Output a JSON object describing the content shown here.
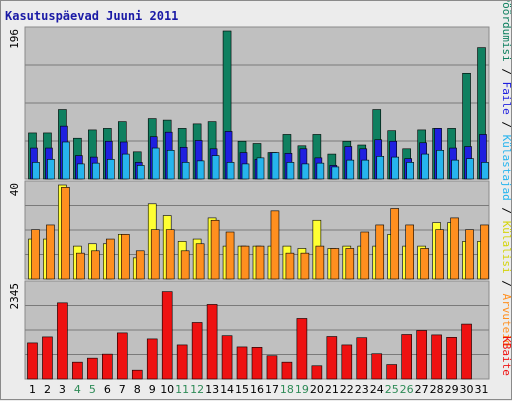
{
  "chart_data": {
    "title": "Kasutuspäevad Juuni 2011",
    "type": "bar",
    "days": [
      "1",
      "2",
      "3",
      "4",
      "5",
      "6",
      "7",
      "8",
      "9",
      "10",
      "11",
      "12",
      "13",
      "14",
      "15",
      "16",
      "17",
      "18",
      "19",
      "20",
      "21",
      "22",
      "23",
      "24",
      "25",
      "26",
      "27",
      "28",
      "29",
      "30",
      "31"
    ],
    "weekend_days": [
      "4",
      "5",
      "11",
      "12",
      "18",
      "19",
      "25",
      "26"
    ],
    "top_panel": {
      "max_label": "196",
      "ymax": 196,
      "series": [
        {
          "name": "Pöördumisi",
          "color": "#0f8060",
          "values": [
            61,
            61,
            92,
            54,
            65,
            67,
            76,
            36,
            80,
            78,
            67,
            73,
            76,
            196,
            50,
            47,
            35,
            59,
            44,
            59,
            33,
            50,
            45,
            92,
            64,
            40,
            65,
            67,
            67,
            140,
            174
          ]
        },
        {
          "name": "Faile",
          "color": "#1f1fe0",
          "values": [
            41,
            41,
            70,
            31,
            29,
            50,
            49,
            22,
            56,
            62,
            42,
            51,
            40,
            63,
            35,
            26,
            35,
            34,
            40,
            28,
            18,
            43,
            40,
            52,
            50,
            27,
            48,
            67,
            41,
            43,
            59
          ]
        },
        {
          "name": "Külastajad",
          "color": "#26b4ee",
          "values": [
            22,
            26,
            49,
            20,
            21,
            26,
            33,
            18,
            41,
            38,
            22,
            24,
            31,
            22,
            20,
            28,
            35,
            22,
            20,
            21,
            16,
            25,
            25,
            30,
            29,
            22,
            33,
            38,
            25,
            27,
            22
          ]
        }
      ]
    },
    "middle_panel": {
      "max_label": "40",
      "ymax": 40,
      "series": [
        {
          "name": "Külalisi",
          "color": "#ffff33",
          "values": [
            17,
            17,
            40,
            14,
            15,
            15,
            19,
            9,
            32,
            27,
            16,
            17,
            26,
            14,
            14,
            14,
            14,
            14,
            13,
            25,
            13,
            14,
            14,
            14,
            19,
            14,
            14,
            24,
            24,
            16,
            16
          ]
        },
        {
          "name": "Arvuteid",
          "color": "#ff8f1f",
          "values": [
            21,
            23,
            39,
            11,
            12,
            17,
            19,
            12,
            21,
            21,
            12,
            15,
            25,
            20,
            14,
            14,
            29,
            11,
            11,
            14,
            13,
            13,
            20,
            23,
            30,
            23,
            13,
            21,
            26,
            21,
            23
          ]
        }
      ]
    },
    "bottom_panel": {
      "max_label": "2345",
      "ymax": 2345,
      "series": [
        {
          "name": "KBaite",
          "color": "#ee1111",
          "values": [
            900,
            1050,
            1900,
            420,
            520,
            620,
            1150,
            220,
            1000,
            2180,
            850,
            1410,
            1860,
            1080,
            800,
            790,
            580,
            420,
            1510,
            330,
            1060,
            850,
            1030,
            630,
            360,
            1110,
            1210,
            1100,
            1040,
            1370,
            0
          ]
        }
      ]
    }
  }
}
